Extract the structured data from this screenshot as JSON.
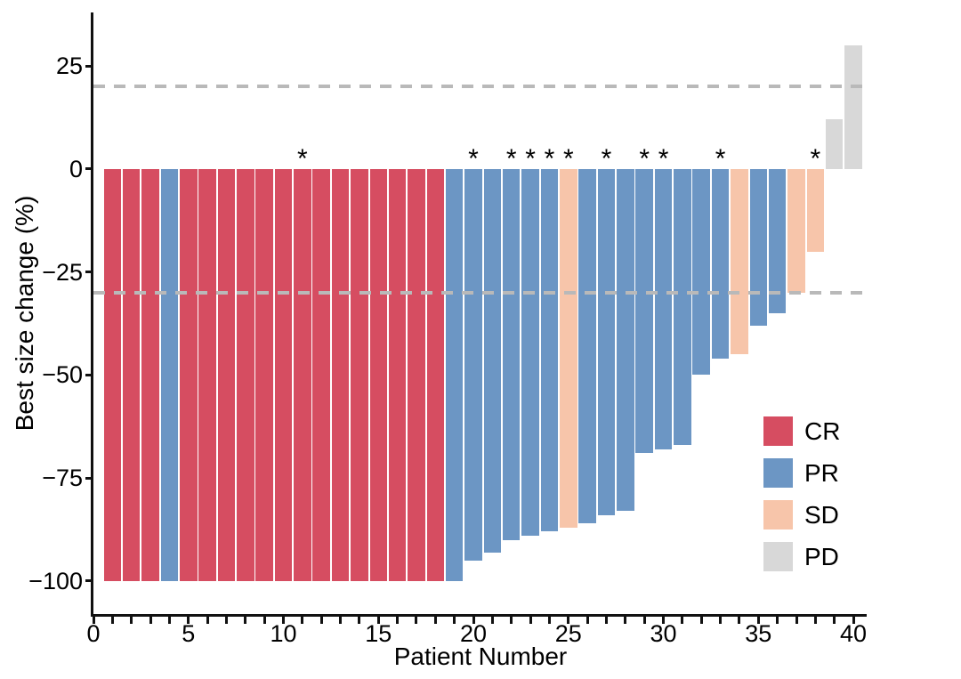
{
  "chart_data": {
    "type": "bar",
    "subtype": "waterfall",
    "title": "",
    "xlabel": "Patient Number",
    "ylabel": "Best size change (%)",
    "xlim": [
      0,
      40.7
    ],
    "ylim": [
      -108,
      38
    ],
    "x_major_ticks": [
      0,
      5,
      10,
      15,
      20,
      25,
      30,
      35,
      40
    ],
    "x_minor_tick_step": 1,
    "y_ticks": [
      25,
      0,
      -25,
      -50,
      -75,
      -100
    ],
    "y_tick_labels": [
      "25",
      "0",
      "−25",
      "−50",
      "−75",
      "−100"
    ],
    "reference_lines": [
      20,
      -30
    ],
    "reference_line_style": "dashed",
    "reference_line_color": "#b9b9b9",
    "grid": false,
    "axis_color": "#111111",
    "annotation_marker": "*",
    "legend_position": "inside-right",
    "groups": [
      {
        "id": "CR",
        "label": "CR",
        "color": "#d64d61"
      },
      {
        "id": "PR",
        "label": "PR",
        "color": "#6c96c4"
      },
      {
        "id": "SD",
        "label": "SD",
        "color": "#f7c5aa"
      },
      {
        "id": "PD",
        "label": "PD",
        "color": "#d8d8d8"
      }
    ],
    "patients": [
      {
        "patient": 1,
        "value": -100,
        "response": "CR",
        "asterisk": false
      },
      {
        "patient": 2,
        "value": -100,
        "response": "CR",
        "asterisk": false
      },
      {
        "patient": 3,
        "value": -100,
        "response": "CR",
        "asterisk": false
      },
      {
        "patient": 4,
        "value": -100,
        "response": "PR",
        "asterisk": false
      },
      {
        "patient": 5,
        "value": -100,
        "response": "CR",
        "asterisk": false
      },
      {
        "patient": 6,
        "value": -100,
        "response": "CR",
        "asterisk": false
      },
      {
        "patient": 7,
        "value": -100,
        "response": "CR",
        "asterisk": false
      },
      {
        "patient": 8,
        "value": -100,
        "response": "CR",
        "asterisk": false
      },
      {
        "patient": 9,
        "value": -100,
        "response": "CR",
        "asterisk": false
      },
      {
        "patient": 10,
        "value": -100,
        "response": "CR",
        "asterisk": false
      },
      {
        "patient": 11,
        "value": -100,
        "response": "CR",
        "asterisk": true
      },
      {
        "patient": 12,
        "value": -100,
        "response": "CR",
        "asterisk": false
      },
      {
        "patient": 13,
        "value": -100,
        "response": "CR",
        "asterisk": false
      },
      {
        "patient": 14,
        "value": -100,
        "response": "CR",
        "asterisk": false
      },
      {
        "patient": 15,
        "value": -100,
        "response": "CR",
        "asterisk": false
      },
      {
        "patient": 16,
        "value": -100,
        "response": "CR",
        "asterisk": false
      },
      {
        "patient": 17,
        "value": -100,
        "response": "CR",
        "asterisk": false
      },
      {
        "patient": 18,
        "value": -100,
        "response": "CR",
        "asterisk": false
      },
      {
        "patient": 19,
        "value": -100,
        "response": "PR",
        "asterisk": false
      },
      {
        "patient": 20,
        "value": -95,
        "response": "PR",
        "asterisk": true
      },
      {
        "patient": 21,
        "value": -93,
        "response": "PR",
        "asterisk": false
      },
      {
        "patient": 22,
        "value": -90,
        "response": "PR",
        "asterisk": true
      },
      {
        "patient": 23,
        "value": -89,
        "response": "PR",
        "asterisk": true
      },
      {
        "patient": 24,
        "value": -88,
        "response": "PR",
        "asterisk": true
      },
      {
        "patient": 25,
        "value": -87,
        "response": "SD",
        "asterisk": true
      },
      {
        "patient": 26,
        "value": -86,
        "response": "PR",
        "asterisk": false
      },
      {
        "patient": 27,
        "value": -84,
        "response": "PR",
        "asterisk": true
      },
      {
        "patient": 28,
        "value": -83,
        "response": "PR",
        "asterisk": false
      },
      {
        "patient": 29,
        "value": -69,
        "response": "PR",
        "asterisk": true
      },
      {
        "patient": 30,
        "value": -68,
        "response": "PR",
        "asterisk": true
      },
      {
        "patient": 31,
        "value": -67,
        "response": "PR",
        "asterisk": false
      },
      {
        "patient": 32,
        "value": -50,
        "response": "PR",
        "asterisk": false
      },
      {
        "patient": 33,
        "value": -46,
        "response": "PR",
        "asterisk": true
      },
      {
        "patient": 34,
        "value": -45,
        "response": "SD",
        "asterisk": false
      },
      {
        "patient": 35,
        "value": -38,
        "response": "PR",
        "asterisk": false
      },
      {
        "patient": 36,
        "value": -35,
        "response": "PR",
        "asterisk": false
      },
      {
        "patient": 37,
        "value": -30,
        "response": "SD",
        "asterisk": false
      },
      {
        "patient": 38,
        "value": -20,
        "response": "SD",
        "asterisk": true
      },
      {
        "patient": 39,
        "value": 12,
        "response": "PD",
        "asterisk": false
      },
      {
        "patient": 40,
        "value": 30,
        "response": "PD",
        "asterisk": false
      }
    ]
  }
}
